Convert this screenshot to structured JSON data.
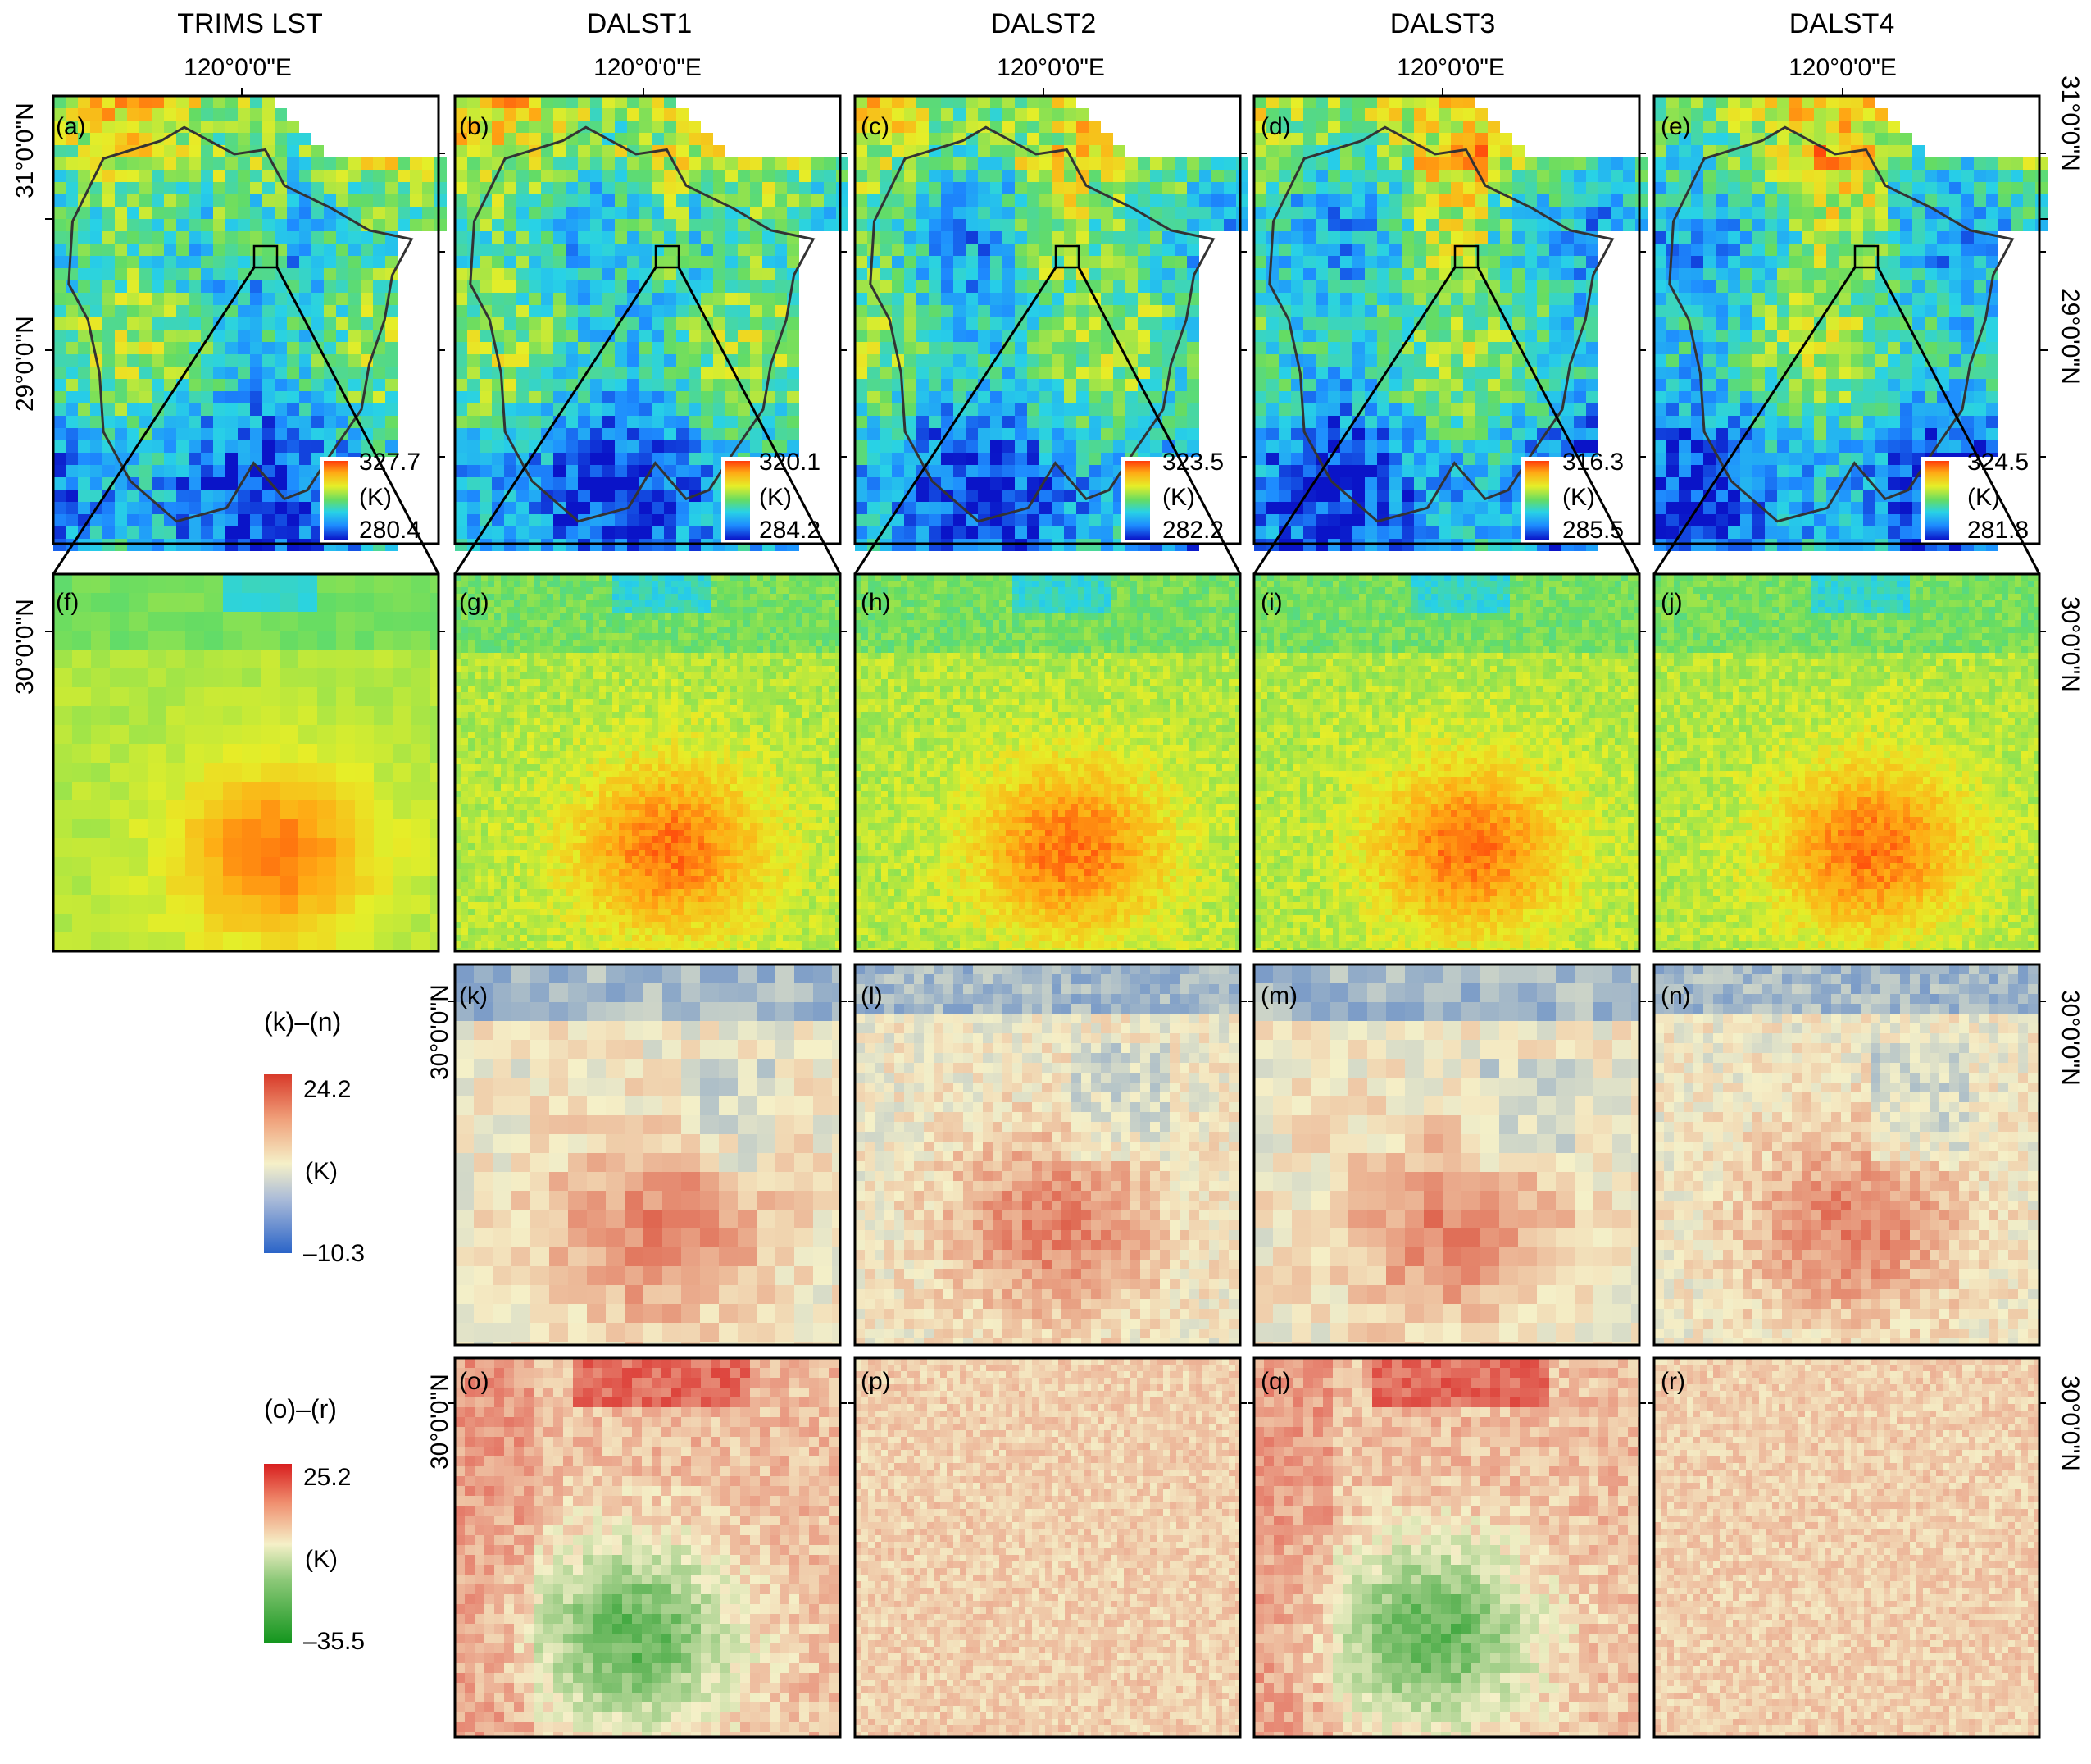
{
  "column_titles": [
    "TRIMS LST",
    "DALST1",
    "DALST2",
    "DALST3",
    "DALST4"
  ],
  "longitude_label": "120°0'0\"E",
  "latitude_labels": {
    "lat31": "31°0'0\"N",
    "lat29": "29°0'0\"N",
    "lat30": "30°0'0\"N"
  },
  "panel_labels": {
    "row1": [
      "(a)",
      "(b)",
      "(c)",
      "(d)",
      "(e)"
    ],
    "row2": [
      "(f)",
      "(g)",
      "(h)",
      "(i)",
      "(j)"
    ],
    "row3": [
      "(k)",
      "(l)",
      "(m)",
      "(n)"
    ],
    "row4": [
      "(o)",
      "(p)",
      "(q)",
      "(r)"
    ]
  },
  "unit_label": "(K)",
  "row1_colorbars": [
    {
      "max": "327.7",
      "min": "280.4"
    },
    {
      "max": "320.1",
      "min": "284.2"
    },
    {
      "max": "323.5",
      "min": "282.2"
    },
    {
      "max": "316.3",
      "min": "285.5"
    },
    {
      "max": "324.5",
      "min": "281.8"
    }
  ],
  "legend_kn": {
    "title": "(k)–(n)",
    "max": "24.2",
    "unit": "(K)",
    "min": "–10.3"
  },
  "legend_or": {
    "title": "(o)–(r)",
    "max": "25.2",
    "unit": "(K)",
    "min": "–35.5"
  },
  "colors": {
    "lst_ramp": [
      "#0a14c8",
      "#1e8cff",
      "#28d2e6",
      "#64dc64",
      "#e6ee28",
      "#ffaa14",
      "#ff3c0a"
    ],
    "diff_ramp": [
      "#2a64c8",
      "#f5f0c8",
      "#d83a2a"
    ],
    "err_ramp": [
      "#14961e",
      "#f5f0c8",
      "#d81e1e"
    ],
    "outline": "#333333"
  }
}
